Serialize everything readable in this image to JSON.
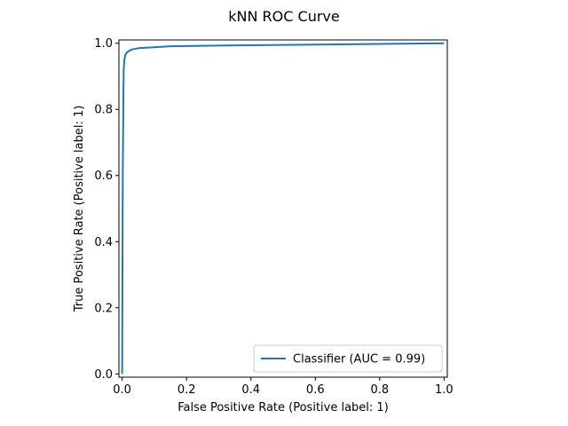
{
  "chart_data": {
    "type": "line",
    "title": "kNN ROC Curve",
    "xlabel": "False Positive Rate (Positive label: 1)",
    "ylabel": "True Positive Rate (Positive label: 1)",
    "xlim": [
      -0.01,
      1.01
    ],
    "ylim": [
      -0.01,
      1.01
    ],
    "xticks": [
      0.0,
      0.2,
      0.4,
      0.6,
      0.8,
      1.0
    ],
    "yticks": [
      0.0,
      0.2,
      0.4,
      0.6,
      0.8,
      1.0
    ],
    "xtick_labels": [
      "0.0",
      "0.2",
      "0.4",
      "0.6",
      "0.8",
      "1.0"
    ],
    "ytick_labels": [
      "0.0",
      "0.2",
      "0.4",
      "0.6",
      "0.8",
      "1.0"
    ],
    "grid": false,
    "legend_position": "lower-right",
    "series": [
      {
        "name": "Classifier (AUC = 0.99)",
        "color": "#1f77b4",
        "x": [
          0.0,
          0.001,
          0.002,
          0.004,
          0.005,
          0.007,
          0.01,
          0.015,
          0.02,
          0.03,
          0.05,
          0.08,
          0.15,
          0.3,
          0.5,
          0.7,
          0.9,
          1.0
        ],
        "y": [
          0.0,
          0.3,
          0.6,
          0.85,
          0.92,
          0.95,
          0.965,
          0.972,
          0.976,
          0.981,
          0.985,
          0.987,
          0.991,
          0.993,
          0.995,
          0.997,
          0.999,
          1.0
        ]
      }
    ]
  }
}
